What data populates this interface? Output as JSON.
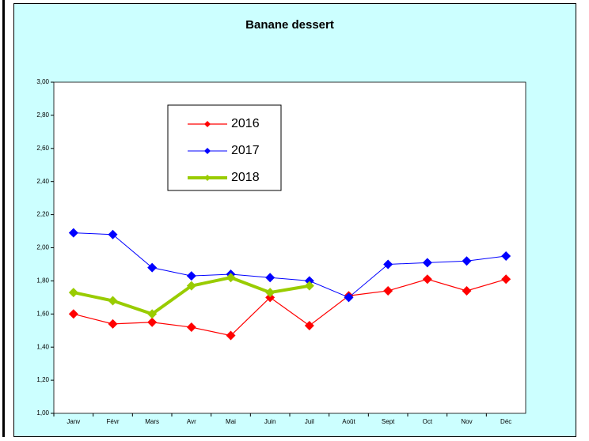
{
  "chart_data": {
    "type": "line",
    "title": "Banane dessert",
    "categories": [
      "Janv",
      "Févr",
      "Mars",
      "Avr",
      "Mai",
      "Juin",
      "Juil",
      "Août",
      "Sept",
      "Oct",
      "Nov",
      "Déc"
    ],
    "series": [
      {
        "name": "2016",
        "color": "#ff0000",
        "values": [
          1.6,
          1.54,
          1.55,
          1.52,
          1.47,
          1.7,
          1.53,
          1.71,
          1.74,
          1.81,
          1.74,
          1.81
        ]
      },
      {
        "name": "2017",
        "color": "#0000ff",
        "values": [
          2.09,
          2.08,
          1.88,
          1.83,
          1.84,
          1.82,
          1.8,
          1.7,
          1.9,
          1.91,
          1.92,
          1.95
        ]
      },
      {
        "name": "2018",
        "color": "#99cc00",
        "values": [
          1.73,
          1.68,
          1.6,
          1.77,
          1.82,
          1.73,
          1.77,
          null,
          null,
          null,
          null,
          null
        ]
      }
    ],
    "ylim": [
      1,
      3
    ],
    "yticks": [
      {
        "value": 1,
        "label": "1,00"
      },
      {
        "value": 1.2,
        "label": "1,20"
      },
      {
        "value": 1.4,
        "label": "1,40"
      },
      {
        "value": 1.6,
        "label": "1,60"
      },
      {
        "value": 1.8,
        "label": "1,80"
      },
      {
        "value": 2,
        "label": "2,00"
      },
      {
        "value": 2.2,
        "label": "2,20"
      },
      {
        "value": 2.4,
        "label": "2,40"
      },
      {
        "value": 2.6,
        "label": "2,60"
      },
      {
        "value": 2.8,
        "label": "2,80"
      },
      {
        "value": 3,
        "label": "3,00"
      }
    ],
    "grid": false,
    "legend": "upper left"
  }
}
